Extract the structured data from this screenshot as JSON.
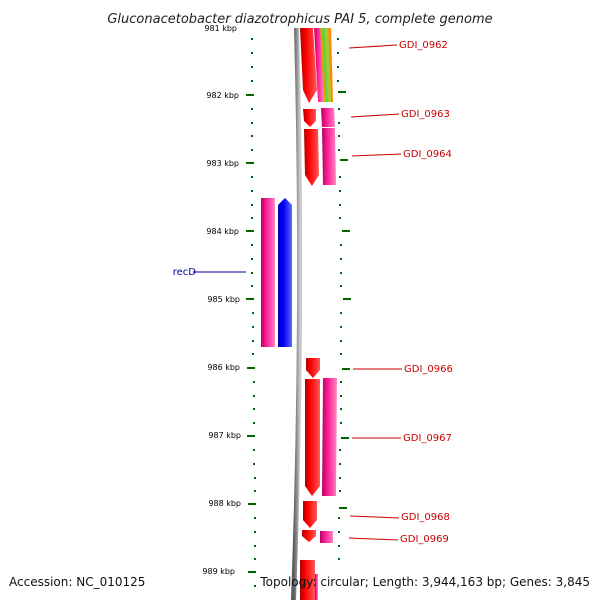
{
  "title": "Gluconacetobacter diazotrophicus PAI 5, complete genome",
  "footer": {
    "accession": "Accession: NC_010125",
    "topology": "Topology: circular; Length: 3,944,163 bp; Genes: 3,845"
  },
  "colors": {
    "forward_gene": "#ff0000",
    "forward_cds": "#ff1493",
    "reverse_gene": "#0000ff",
    "backbone": "#808080",
    "tick": "#006400",
    "label_red": "#cc0000",
    "label_blue": "#000099"
  },
  "ruler": {
    "labels": [
      "981 kbp",
      "982 kbp",
      "983 kbp",
      "984 kbp",
      "985 kbp",
      "986 kbp",
      "987 kbp",
      "988 kbp",
      "989 kbp"
    ]
  },
  "gene_labels": [
    {
      "text": "GDI_0962",
      "strand": "forward"
    },
    {
      "text": "GDI_0963",
      "strand": "forward"
    },
    {
      "text": "GDI_0964",
      "strand": "forward"
    },
    {
      "text": "recD",
      "strand": "reverse"
    },
    {
      "text": "GDI_0966",
      "strand": "forward"
    },
    {
      "text": "GDI_0967",
      "strand": "forward"
    },
    {
      "text": "GDI_0968",
      "strand": "forward"
    },
    {
      "text": "GDI_0969",
      "strand": "forward"
    }
  ]
}
